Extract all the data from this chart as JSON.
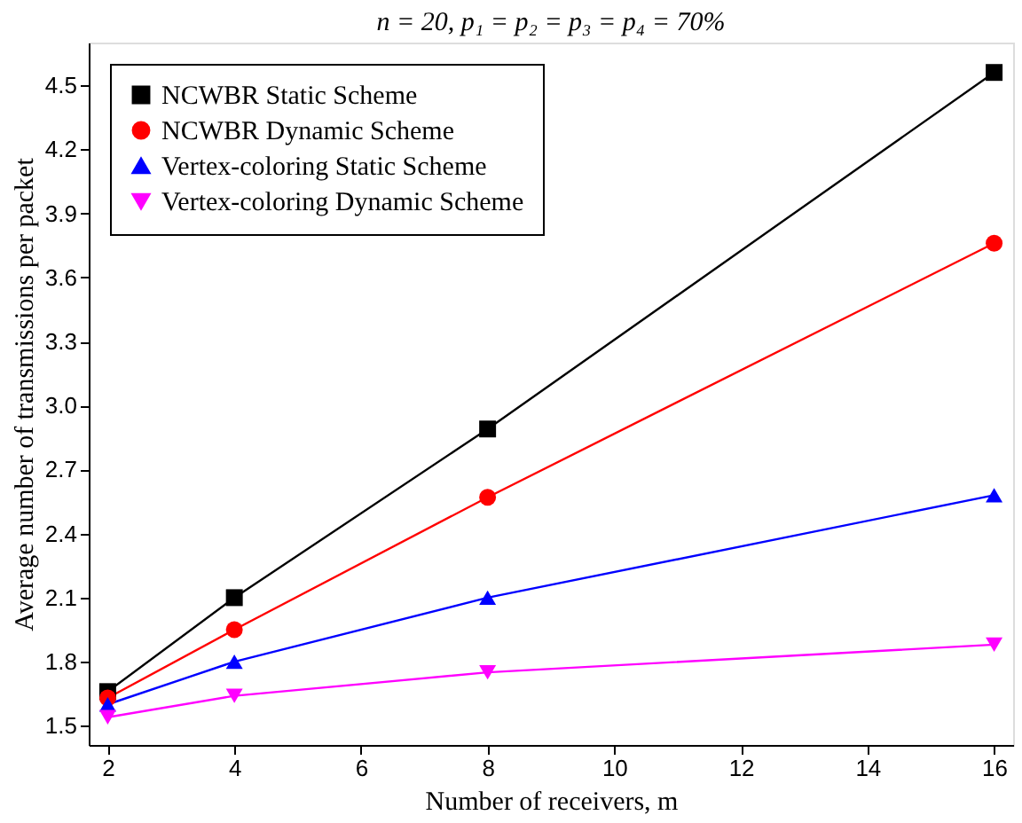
{
  "chart_data": {
    "type": "line",
    "title": "n = 20, p₁ = p₂ = p₃ = p₄ = 70%",
    "xlabel": "Number of receivers, m",
    "ylabel": "Average number of transmissions per packet",
    "x": [
      2,
      4,
      8,
      16
    ],
    "series": [
      {
        "name": "NCWBR Static Scheme",
        "color": "#000000",
        "marker": "square",
        "values": [
          1.66,
          2.1,
          2.89,
          4.56
        ]
      },
      {
        "name": "NCWBR Dynamic Scheme",
        "color": "#ff0000",
        "marker": "circle",
        "values": [
          1.63,
          1.95,
          2.57,
          3.76
        ]
      },
      {
        "name": "Vertex-coloring Static Scheme",
        "color": "#0000ff",
        "marker": "triangle",
        "values": [
          1.6,
          1.8,
          2.1,
          2.58
        ]
      },
      {
        "name": "Vertex-coloring Dynamic Scheme",
        "color": "#ff00ff",
        "marker": "triangle-down",
        "values": [
          1.54,
          1.64,
          1.75,
          1.88
        ]
      }
    ],
    "xlim": [
      1.7,
      16.3
    ],
    "ylim": [
      1.41,
      4.7
    ],
    "xticks": [
      2,
      4,
      6,
      8,
      10,
      12,
      14,
      16
    ],
    "yticks": [
      1.5,
      1.8,
      2.1,
      2.4,
      2.7,
      {
        "value": 3,
        "label": "3.0"
      },
      3.3,
      3.6,
      3.9,
      4.2,
      4.5
    ],
    "grid": false,
    "legend": "top left",
    "line_style": "solid"
  }
}
